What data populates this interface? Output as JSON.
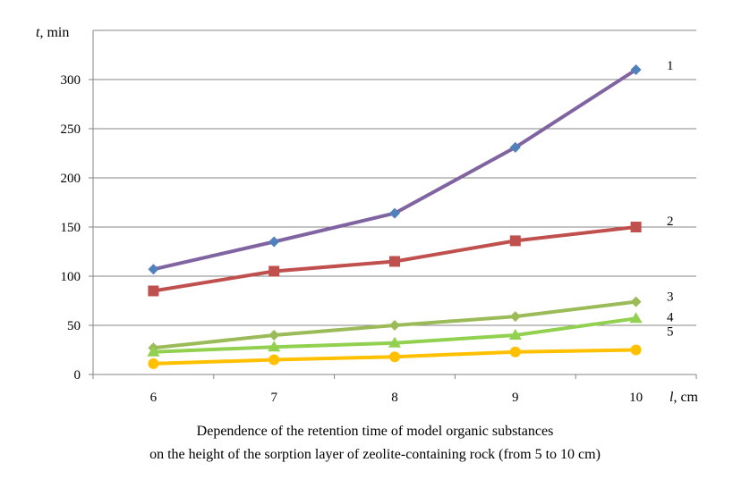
{
  "chart_data": {
    "type": "line",
    "x": [
      6,
      7,
      8,
      9,
      10
    ],
    "xlabel_var": "l",
    "xlabel_unit": ", cm",
    "ylabel_var": "t",
    "ylabel_unit": ", min",
    "ylim": [
      0,
      350
    ],
    "yticks": [
      0,
      50,
      100,
      150,
      200,
      250,
      300
    ],
    "grid": "horizontal",
    "series": [
      {
        "name": "1",
        "values": [
          107,
          135,
          164,
          231,
          310
        ],
        "color": "#8064A2",
        "marker": "diamond",
        "marker_color": "#4F81BD"
      },
      {
        "name": "2",
        "values": [
          85,
          105,
          115,
          136,
          150
        ],
        "color": "#C0504D",
        "marker": "square",
        "marker_color": "#C0504D"
      },
      {
        "name": "3",
        "values": [
          27,
          40,
          50,
          59,
          74
        ],
        "color": "#9BBB59",
        "marker": "diamond",
        "marker_color": "#9BBB59"
      },
      {
        "name": "4",
        "values": [
          23,
          28,
          32,
          40,
          57
        ],
        "color": "#92D050",
        "marker": "triangle",
        "marker_color": "#92D050"
      },
      {
        "name": "5",
        "values": [
          11,
          15,
          18,
          23,
          25
        ],
        "color": "#FFC000",
        "marker": "circle",
        "marker_color": "#FFC000"
      }
    ]
  },
  "caption": {
    "line1": "Dependence of the retention time of model organic substances",
    "line2": "on the height of the sorption layer of zeolite-containing rock (from 5 to 10 cm)"
  }
}
